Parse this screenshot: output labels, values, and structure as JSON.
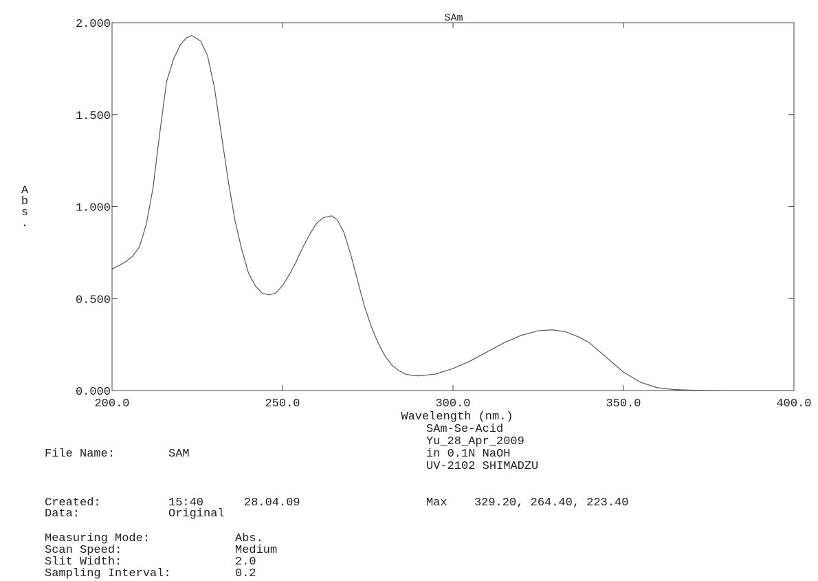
{
  "chart_data": {
    "type": "line",
    "title": "SAm",
    "x_label": "Wavelength (nm.)",
    "y_label": "Abs.",
    "color": "#555555",
    "x": [
      200,
      202,
      204,
      206,
      208,
      210,
      212,
      214,
      216,
      218,
      220,
      222,
      223.4,
      226,
      228,
      230,
      232,
      234,
      236,
      238,
      240,
      242,
      244,
      246,
      248,
      250,
      252,
      254,
      256,
      258,
      260,
      262,
      264.4,
      266,
      268,
      270,
      272,
      274,
      276,
      278,
      280,
      282,
      284,
      286,
      288,
      290,
      295,
      300,
      305,
      310,
      315,
      320,
      325,
      329.2,
      333,
      337,
      340,
      345,
      350,
      355,
      360,
      365,
      370,
      380,
      390,
      400
    ],
    "values": [
      0.66,
      0.68,
      0.7,
      0.73,
      0.78,
      0.9,
      1.1,
      1.4,
      1.68,
      1.8,
      1.88,
      1.92,
      1.93,
      1.9,
      1.82,
      1.65,
      1.4,
      1.15,
      0.93,
      0.77,
      0.64,
      0.57,
      0.53,
      0.52,
      0.53,
      0.57,
      0.63,
      0.7,
      0.78,
      0.85,
      0.91,
      0.94,
      0.95,
      0.93,
      0.86,
      0.74,
      0.6,
      0.46,
      0.35,
      0.26,
      0.19,
      0.14,
      0.11,
      0.09,
      0.082,
      0.08,
      0.09,
      0.12,
      0.16,
      0.21,
      0.26,
      0.3,
      0.325,
      0.33,
      0.32,
      0.29,
      0.26,
      0.18,
      0.1,
      0.045,
      0.015,
      0.005,
      0.002,
      0,
      0,
      0
    ],
    "xlim": [
      200,
      400
    ],
    "ylim": [
      0,
      2
    ],
    "xticks": [
      {
        "value": 200,
        "label": "200.0"
      },
      {
        "value": 250,
        "label": "250.0"
      },
      {
        "value": 300,
        "label": "300.0"
      },
      {
        "value": 350,
        "label": "350.0"
      },
      {
        "value": 400,
        "label": "400.0"
      }
    ],
    "yticks": [
      {
        "value": 0,
        "label": "0.000"
      },
      {
        "value": 0.5,
        "label": "0.500"
      },
      {
        "value": 1,
        "label": "1.000"
      },
      {
        "value": 1.5,
        "label": "1.500"
      },
      {
        "value": 2,
        "label": "2.000"
      }
    ],
    "grid": false
  },
  "sample": [
    "SAm-Se-Acid",
    "Yu_28_Apr_2009",
    "in 0.1N NaOH",
    "UV-2102 SHIMADZU"
  ],
  "metadata": {
    "file_name": {
      "label": "File Name:",
      "value": "SAM"
    },
    "created": {
      "label": "Created:",
      "time": "15:40",
      "date": "28.04.09"
    },
    "max": {
      "label": "Max",
      "value": "329.20, 264.40, 223.40"
    },
    "data": {
      "label": "Data:",
      "value": "Original"
    },
    "settings": [
      {
        "label": "Measuring Mode:",
        "value": "Abs."
      },
      {
        "label": "Scan Speed:",
        "value": "Medium"
      },
      {
        "label": "Slit Width:",
        "value": "2.0"
      },
      {
        "label": "Sampling Interval:",
        "value": "0.2"
      }
    ]
  }
}
